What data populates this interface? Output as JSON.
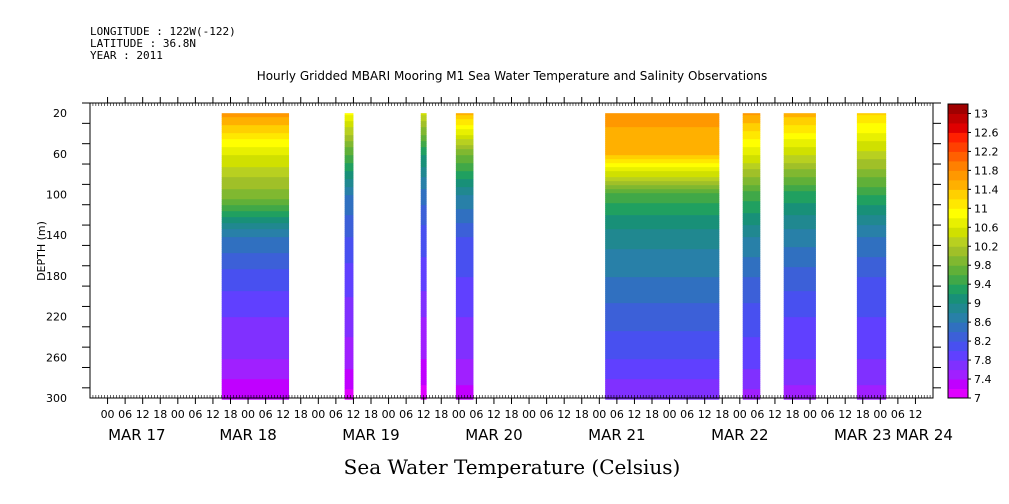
{
  "header": {
    "longitude": "LONGITUDE : 122W(-122)",
    "latitude": "LATITUDE : 36.8N",
    "year": "YEAR : 2011"
  },
  "chart_data": {
    "type": "heatmap",
    "title": "Hourly Gridded MBARI Mooring M1 Sea Water Temperature and Salinity Observations",
    "xlabel_caption": "Sea Water Temperature (Celsius)",
    "ylabel": "DEPTH (m)",
    "y_range": [
      10,
      300
    ],
    "y_ticks": [
      20,
      60,
      100,
      140,
      180,
      220,
      260,
      300
    ],
    "x_range_hours": [
      -30,
      258
    ],
    "x_hour_ticks": [
      -24,
      -18,
      -12,
      -6,
      0,
      6,
      12,
      18,
      24,
      30,
      36,
      42,
      48,
      54,
      60,
      66,
      72,
      78,
      84,
      90,
      96,
      102,
      108,
      114,
      120,
      126,
      132,
      138,
      144,
      150,
      156,
      162,
      168,
      174,
      180,
      186,
      192,
      198,
      204,
      210,
      216,
      222,
      228,
      234,
      240,
      246,
      252
    ],
    "x_hour_labels": [
      "06",
      "12",
      "18",
      "00"
    ],
    "day_labels": [
      {
        "label": "MAR 17",
        "hour": -14
      },
      {
        "label": "MAR 18",
        "hour": 24
      },
      {
        "label": "MAR 19",
        "hour": 66
      },
      {
        "label": "MAR 20",
        "hour": 108
      },
      {
        "label": "MAR 21",
        "hour": 150
      },
      {
        "label": "MAR 22",
        "hour": 192
      },
      {
        "label": "MAR 23",
        "hour": 234
      },
      {
        "label": "MAR 24",
        "hour": 255
      }
    ],
    "colorbar": {
      "levels": [
        7,
        7.2,
        7.4,
        7.6,
        7.8,
        8,
        8.2,
        8.4,
        8.6,
        8.8,
        9,
        9.2,
        9.4,
        9.6,
        9.8,
        10,
        10.2,
        10.4,
        10.6,
        10.8,
        11,
        11.2,
        11.4,
        11.6,
        11.8,
        12,
        12.2,
        12.4,
        12.6,
        12.8,
        13,
        13.2
      ],
      "colors": [
        "#e000ff",
        "#c000ff",
        "#a020ff",
        "#8030ff",
        "#6040ff",
        "#4850f0",
        "#3c60d8",
        "#3070c0",
        "#2880a8",
        "#208890",
        "#189078",
        "#20a060",
        "#40a848",
        "#60b038",
        "#80b830",
        "#a0c028",
        "#b8d020",
        "#d0e000",
        "#e8f000",
        "#ffff00",
        "#ffe800",
        "#ffd000",
        "#ffb000",
        "#ff9800",
        "#ff8000",
        "#ff6000",
        "#ff4000",
        "#ff2000",
        "#e00000",
        "#c00000",
        "#a00000"
      ],
      "labels": [
        "7",
        "7.4",
        "7.8",
        "8.2",
        "8.6",
        "9",
        "9.4",
        "9.8",
        "10.2",
        "10.6",
        "11",
        "11.4",
        "11.8",
        "12.2",
        "12.6",
        "13"
      ]
    },
    "segments": [
      {
        "start_hour": 15,
        "end_hour": 38,
        "temps": [
          11.7,
          10.6,
          9.9,
          8.6,
          8.1,
          7.8,
          7.6,
          7.2
        ]
      },
      {
        "start_hour": 57,
        "end_hour": 60,
        "temps": [
          10.8,
          9.6,
          8.6,
          8.2,
          7.9,
          7.7,
          7.5,
          7.1
        ]
      },
      {
        "start_hour": 83,
        "end_hour": 85,
        "temps": [
          10.4,
          9.2,
          8.5,
          8.1,
          7.9,
          7.6,
          7.4,
          7.1
        ]
      },
      {
        "start_hour": 95,
        "end_hour": 101,
        "temps": [
          11.4,
          9.8,
          8.8,
          8.2,
          8.0,
          7.8,
          7.6,
          7.3
        ]
      },
      {
        "start_hour": 146,
        "end_hour": 185,
        "temps": [
          11.7,
          11.4,
          9.5,
          8.9,
          8.6,
          8.3,
          8.0,
          7.6
        ]
      },
      {
        "start_hour": 193,
        "end_hour": 199,
        "temps": [
          11.6,
          10.6,
          9.5,
          8.8,
          8.4,
          8.1,
          7.9,
          7.5
        ]
      },
      {
        "start_hour": 207,
        "end_hour": 218,
        "temps": [
          11.5,
          10.4,
          9.3,
          8.7,
          8.3,
          8.0,
          7.8,
          7.5
        ]
      },
      {
        "start_hour": 232,
        "end_hour": 242,
        "temps": [
          11.2,
          10.3,
          9.4,
          8.6,
          8.2,
          8.0,
          7.8,
          7.5
        ]
      }
    ]
  }
}
